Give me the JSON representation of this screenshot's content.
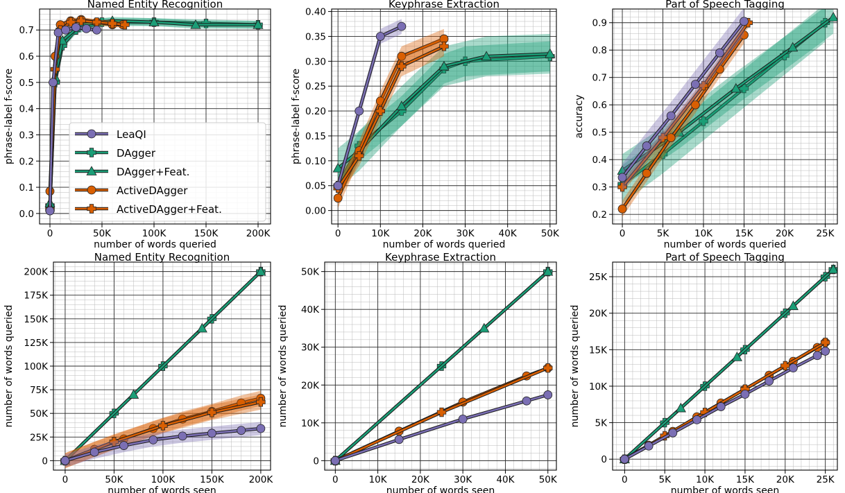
{
  "figure_colors": {
    "LeaQI": "#7b6fb4",
    "DAgger": "#1b9e77",
    "ActiveDAgger": "#d95f02"
  },
  "legend": [
    {
      "label": "LeaQI",
      "color": "#7b6fb4",
      "marker": "circle"
    },
    {
      "label": "DAgger",
      "color": "#1b9e77",
      "marker": "plus"
    },
    {
      "label": "DAgger+Feat.",
      "color": "#1b9e77",
      "marker": "triangle"
    },
    {
      "label": "ActiveDAgger",
      "color": "#d95f02",
      "marker": "circle"
    },
    {
      "label": "ActiveDAgger+Feat.",
      "color": "#d95f02",
      "marker": "plus"
    }
  ],
  "chart_data": [
    {
      "type": "line",
      "title": "Named Entity Recognition",
      "xlabel": "number of words queried",
      "ylabel": "phrase-label f-score",
      "xlim": [
        -10000,
        212000
      ],
      "ylim": [
        -0.04,
        0.78
      ],
      "xticks": [
        0,
        50000,
        100000,
        150000,
        200000
      ],
      "xtick_labels": [
        "0",
        "50K",
        "100K",
        "150K",
        "200K"
      ],
      "yticks": [
        0.0,
        0.1,
        0.2,
        0.3,
        0.4,
        0.5,
        0.6,
        0.7
      ],
      "ytick_labels": [
        "0.0",
        "0.1",
        "0.2",
        "0.3",
        "0.4",
        "0.5",
        "0.6",
        "0.7"
      ],
      "grid": true,
      "legend_position": "lower-right",
      "series": [
        {
          "name": "DAgger",
          "color": "#1b9e77",
          "marker": "plus",
          "x": [
            0,
            5000,
            12000,
            25000,
            50000,
            100000,
            150000,
            200000
          ],
          "y": [
            0.03,
            0.5,
            0.64,
            0.7,
            0.73,
            0.73,
            0.725,
            0.72
          ],
          "band": 0.015
        },
        {
          "name": "DAgger+Feat.",
          "color": "#1b9e77",
          "marker": "triangle",
          "x": [
            0,
            5000,
            12000,
            30000,
            60000,
            100000,
            140000,
            200000
          ],
          "y": [
            0.04,
            0.52,
            0.66,
            0.72,
            0.735,
            0.73,
            0.72,
            0.72
          ],
          "band": 0.015
        },
        {
          "name": "ActiveDAgger",
          "color": "#d95f02",
          "marker": "circle",
          "x": [
            0,
            5000,
            10000,
            20000,
            30000,
            45000,
            60000,
            70000
          ],
          "y": [
            0.085,
            0.6,
            0.72,
            0.735,
            0.74,
            0.73,
            0.72,
            0.72
          ],
          "band": 0.01
        },
        {
          "name": "ActiveDAgger+Feat.",
          "color": "#d95f02",
          "marker": "plus",
          "x": [
            0,
            5000,
            10000,
            20000,
            30000,
            45000,
            60000,
            72000
          ],
          "y": [
            0.015,
            0.55,
            0.7,
            0.73,
            0.735,
            0.73,
            0.725,
            0.72
          ],
          "band": 0.01
        },
        {
          "name": "LeaQI",
          "color": "#7b6fb4",
          "marker": "circle",
          "x": [
            0,
            3000,
            8000,
            15000,
            25000,
            35000,
            45000
          ],
          "y": [
            0.01,
            0.5,
            0.69,
            0.7,
            0.71,
            0.705,
            0.7
          ],
          "band": 0.01
        }
      ]
    },
    {
      "type": "line",
      "title": "Keyphrase Extraction",
      "xlabel": "number of words queried",
      "ylabel": "phrase-label f-score",
      "xlim": [
        -1500,
        51500
      ],
      "ylim": [
        -0.027,
        0.405
      ],
      "xticks": [
        0,
        10000,
        20000,
        30000,
        40000,
        50000
      ],
      "xtick_labels": [
        "0",
        "10K",
        "20K",
        "30K",
        "40K",
        "50K"
      ],
      "yticks": [
        0.0,
        0.05,
        0.1,
        0.15,
        0.2,
        0.25,
        0.3,
        0.35,
        0.4
      ],
      "ytick_labels": [
        "0.00",
        "0.05",
        "0.10",
        "0.15",
        "0.20",
        "0.25",
        "0.30",
        "0.35",
        "0.40"
      ],
      "grid": true,
      "series": [
        {
          "name": "DAgger",
          "color": "#1b9e77",
          "marker": "plus",
          "x": [
            0,
            5000,
            15000,
            25000,
            30000,
            50000
          ],
          "y": [
            0.05,
            0.13,
            0.2,
            0.285,
            0.3,
            0.31
          ],
          "band": 0.03
        },
        {
          "name": "DAgger+Feat.",
          "color": "#1b9e77",
          "marker": "triangle",
          "x": [
            0,
            5000,
            15000,
            25000,
            35000,
            50000
          ],
          "y": [
            0.085,
            0.12,
            0.21,
            0.29,
            0.31,
            0.315
          ],
          "band": 0.04
        },
        {
          "name": "ActiveDAgger",
          "color": "#d95f02",
          "marker": "circle",
          "x": [
            0,
            5000,
            10000,
            15000,
            25000
          ],
          "y": [
            0.025,
            0.12,
            0.22,
            0.31,
            0.345
          ],
          "band": 0.02
        },
        {
          "name": "ActiveDAgger+Feat.",
          "color": "#d95f02",
          "marker": "plus",
          "x": [
            0,
            5000,
            10000,
            15000,
            25000
          ],
          "y": [
            0.045,
            0.11,
            0.2,
            0.29,
            0.33
          ],
          "band": 0.02
        },
        {
          "name": "LeaQI",
          "color": "#7b6fb4",
          "marker": "circle",
          "x": [
            0,
            5000,
            10000,
            15000
          ],
          "y": [
            0.05,
            0.2,
            0.35,
            0.37
          ],
          "band": 0.015
        }
      ]
    },
    {
      "type": "line",
      "title": "Part of Speech Tagging",
      "xlabel": "number of words queried",
      "ylabel": "accuracy",
      "xlim": [
        -1200,
        26500
      ],
      "ylim": [
        0.165,
        0.95
      ],
      "xticks": [
        0,
        5000,
        10000,
        15000,
        20000,
        25000
      ],
      "xtick_labels": [
        "0",
        "5K",
        "10K",
        "15K",
        "20K",
        "25K"
      ],
      "yticks": [
        0.2,
        0.3,
        0.4,
        0.5,
        0.6,
        0.7,
        0.8,
        0.9
      ],
      "ytick_labels": [
        "0.2",
        "0.3",
        "0.4",
        "0.5",
        "0.6",
        "0.7",
        "0.8",
        "0.9"
      ],
      "grid": true,
      "series": [
        {
          "name": "DAgger",
          "color": "#1b9e77",
          "marker": "plus",
          "x": [
            0,
            5000,
            10000,
            15000,
            20000,
            25000
          ],
          "y": [
            0.31,
            0.42,
            0.54,
            0.66,
            0.78,
            0.9
          ],
          "band": 0.07
        },
        {
          "name": "DAgger+Feat.",
          "color": "#1b9e77",
          "marker": "triangle",
          "x": [
            0,
            7000,
            14000,
            21000,
            26000
          ],
          "y": [
            0.36,
            0.5,
            0.66,
            0.81,
            0.92
          ],
          "band": 0.06
        },
        {
          "name": "ActiveDAgger",
          "color": "#d95f02",
          "marker": "circle",
          "x": [
            0,
            3000,
            6000,
            9000,
            12000,
            15000
          ],
          "y": [
            0.22,
            0.35,
            0.48,
            0.6,
            0.73,
            0.855
          ],
          "band": 0.03
        },
        {
          "name": "ActiveDAgger+Feat.",
          "color": "#d95f02",
          "marker": "plus",
          "x": [
            0,
            5000,
            10000,
            15500
          ],
          "y": [
            0.3,
            0.48,
            0.67,
            0.9
          ],
          "band": 0.02
        },
        {
          "name": "LeaQI",
          "color": "#7b6fb4",
          "marker": "circle",
          "x": [
            0,
            3000,
            6000,
            9000,
            12000,
            15000
          ],
          "y": [
            0.335,
            0.45,
            0.56,
            0.675,
            0.79,
            0.905
          ],
          "band": 0.05
        }
      ]
    },
    {
      "type": "line",
      "title": "Named Entity Recognition",
      "xlabel": "number of words seen",
      "ylabel": "number of words queried",
      "xlim": [
        -12000,
        210000
      ],
      "ylim": [
        -10000,
        210000
      ],
      "xticks": [
        0,
        50000,
        100000,
        150000,
        200000
      ],
      "xtick_labels": [
        "0",
        "50K",
        "100K",
        "150K",
        "200K"
      ],
      "yticks": [
        0,
        25000,
        50000,
        75000,
        100000,
        125000,
        150000,
        175000,
        200000
      ],
      "ytick_labels": [
        "0",
        "25K",
        "50K",
        "75K",
        "100K",
        "125K",
        "150K",
        "175K",
        "200K"
      ],
      "grid": true,
      "series": [
        {
          "name": "DAgger",
          "color": "#1b9e77",
          "marker": "plus",
          "x": [
            0,
            50000,
            100000,
            150000,
            200000
          ],
          "y": [
            0,
            50000,
            100000,
            150000,
            200000
          ],
          "band": 0
        },
        {
          "name": "DAgger+Feat.",
          "color": "#1b9e77",
          "marker": "triangle",
          "x": [
            0,
            70000,
            140000,
            200000
          ],
          "y": [
            0,
            70000,
            140000,
            200000
          ],
          "band": 0
        },
        {
          "name": "ActiveDAgger",
          "color": "#d95f02",
          "marker": "circle",
          "x": [
            0,
            30000,
            60000,
            90000,
            120000,
            150000,
            180000,
            200000
          ],
          "y": [
            0,
            12000,
            23000,
            34000,
            44000,
            52000,
            61000,
            66000
          ],
          "band": 8000
        },
        {
          "name": "ActiveDAgger+Feat.",
          "color": "#d95f02",
          "marker": "plus",
          "x": [
            0,
            50000,
            100000,
            150000,
            200000
          ],
          "y": [
            0,
            20000,
            37000,
            51000,
            62000
          ],
          "band": 8000
        },
        {
          "name": "LeaQI",
          "color": "#7b6fb4",
          "marker": "circle",
          "x": [
            0,
            30000,
            60000,
            90000,
            120000,
            150000,
            180000,
            200000
          ],
          "y": [
            0,
            9000,
            16000,
            22000,
            26000,
            29000,
            32000,
            34000
          ],
          "band": 7000
        }
      ]
    },
    {
      "type": "line",
      "title": "Keyphrase Extraction",
      "xlabel": "number of words seen",
      "ylabel": "number of words queried",
      "xlim": [
        -2500,
        52000
      ],
      "ylim": [
        -2500,
        52500
      ],
      "xticks": [
        0,
        10000,
        20000,
        30000,
        40000,
        50000
      ],
      "xtick_labels": [
        "0",
        "10K",
        "20K",
        "30K",
        "40K",
        "50K"
      ],
      "yticks": [
        0,
        10000,
        20000,
        30000,
        40000,
        50000
      ],
      "ytick_labels": [
        "0",
        "10K",
        "20K",
        "30K",
        "40K",
        "50K"
      ],
      "grid": true,
      "series": [
        {
          "name": "DAgger",
          "color": "#1b9e77",
          "marker": "plus",
          "x": [
            0,
            25000,
            50000
          ],
          "y": [
            0,
            25000,
            50000
          ],
          "band": 0
        },
        {
          "name": "DAgger+Feat.",
          "color": "#1b9e77",
          "marker": "triangle",
          "x": [
            0,
            35000,
            50000
          ],
          "y": [
            0,
            35000,
            50000
          ],
          "band": 0
        },
        {
          "name": "ActiveDAgger",
          "color": "#d95f02",
          "marker": "circle",
          "x": [
            0,
            15000,
            30000,
            45000,
            50000
          ],
          "y": [
            0,
            7800,
            15500,
            22400,
            24500
          ],
          "band": 300
        },
        {
          "name": "ActiveDAgger+Feat.",
          "color": "#d95f02",
          "marker": "plus",
          "x": [
            0,
            25000,
            50000
          ],
          "y": [
            0,
            12800,
            24500
          ],
          "band": 300
        },
        {
          "name": "LeaQI",
          "color": "#7b6fb4",
          "marker": "circle",
          "x": [
            0,
            15000,
            30000,
            45000,
            50000
          ],
          "y": [
            0,
            5600,
            11000,
            15800,
            17400
          ],
          "band": 200
        }
      ]
    },
    {
      "type": "line",
      "title": "Part of Speech Tagging",
      "xlabel": "number of words seen",
      "ylabel": "number of words queried",
      "xlim": [
        -1500,
        26500
      ],
      "ylim": [
        -1500,
        27000
      ],
      "xticks": [
        0,
        5000,
        10000,
        15000,
        20000,
        25000
      ],
      "xtick_labels": [
        "0",
        "5K",
        "10K",
        "15K",
        "20K",
        "25K"
      ],
      "yticks": [
        0,
        5000,
        10000,
        15000,
        20000,
        25000
      ],
      "ytick_labels": [
        "0",
        "5K",
        "10K",
        "15K",
        "20K",
        "25K"
      ],
      "grid": true,
      "series": [
        {
          "name": "DAgger",
          "color": "#1b9e77",
          "marker": "plus",
          "x": [
            0,
            5000,
            10000,
            15000,
            20000,
            25000,
            26000
          ],
          "y": [
            0,
            5000,
            10000,
            15000,
            20000,
            25000,
            26000
          ],
          "band": 0
        },
        {
          "name": "DAgger+Feat.",
          "color": "#1b9e77",
          "marker": "triangle",
          "x": [
            0,
            7000,
            14000,
            21000,
            26000
          ],
          "y": [
            0,
            7000,
            14000,
            21000,
            26000
          ],
          "band": 0
        },
        {
          "name": "ActiveDAgger",
          "color": "#d95f02",
          "marker": "circle",
          "x": [
            0,
            3000,
            6000,
            9000,
            12000,
            15000,
            18000,
            21000,
            24000,
            25000
          ],
          "y": [
            0,
            1900,
            3800,
            5800,
            7700,
            9600,
            11500,
            13400,
            15300,
            16000
          ],
          "band": 150
        },
        {
          "name": "ActiveDAgger+Feat.",
          "color": "#d95f02",
          "marker": "plus",
          "x": [
            0,
            5000,
            10000,
            15000,
            20000,
            25000
          ],
          "y": [
            0,
            3200,
            6400,
            9600,
            12800,
            16000
          ],
          "band": 150
        },
        {
          "name": "LeaQI",
          "color": "#7b6fb4",
          "marker": "circle",
          "x": [
            0,
            3000,
            6000,
            9000,
            12000,
            15000,
            18000,
            21000,
            24000,
            25000
          ],
          "y": [
            0,
            1800,
            3600,
            5400,
            7200,
            8900,
            10700,
            12500,
            14200,
            14800
          ],
          "band": 150
        }
      ]
    }
  ]
}
